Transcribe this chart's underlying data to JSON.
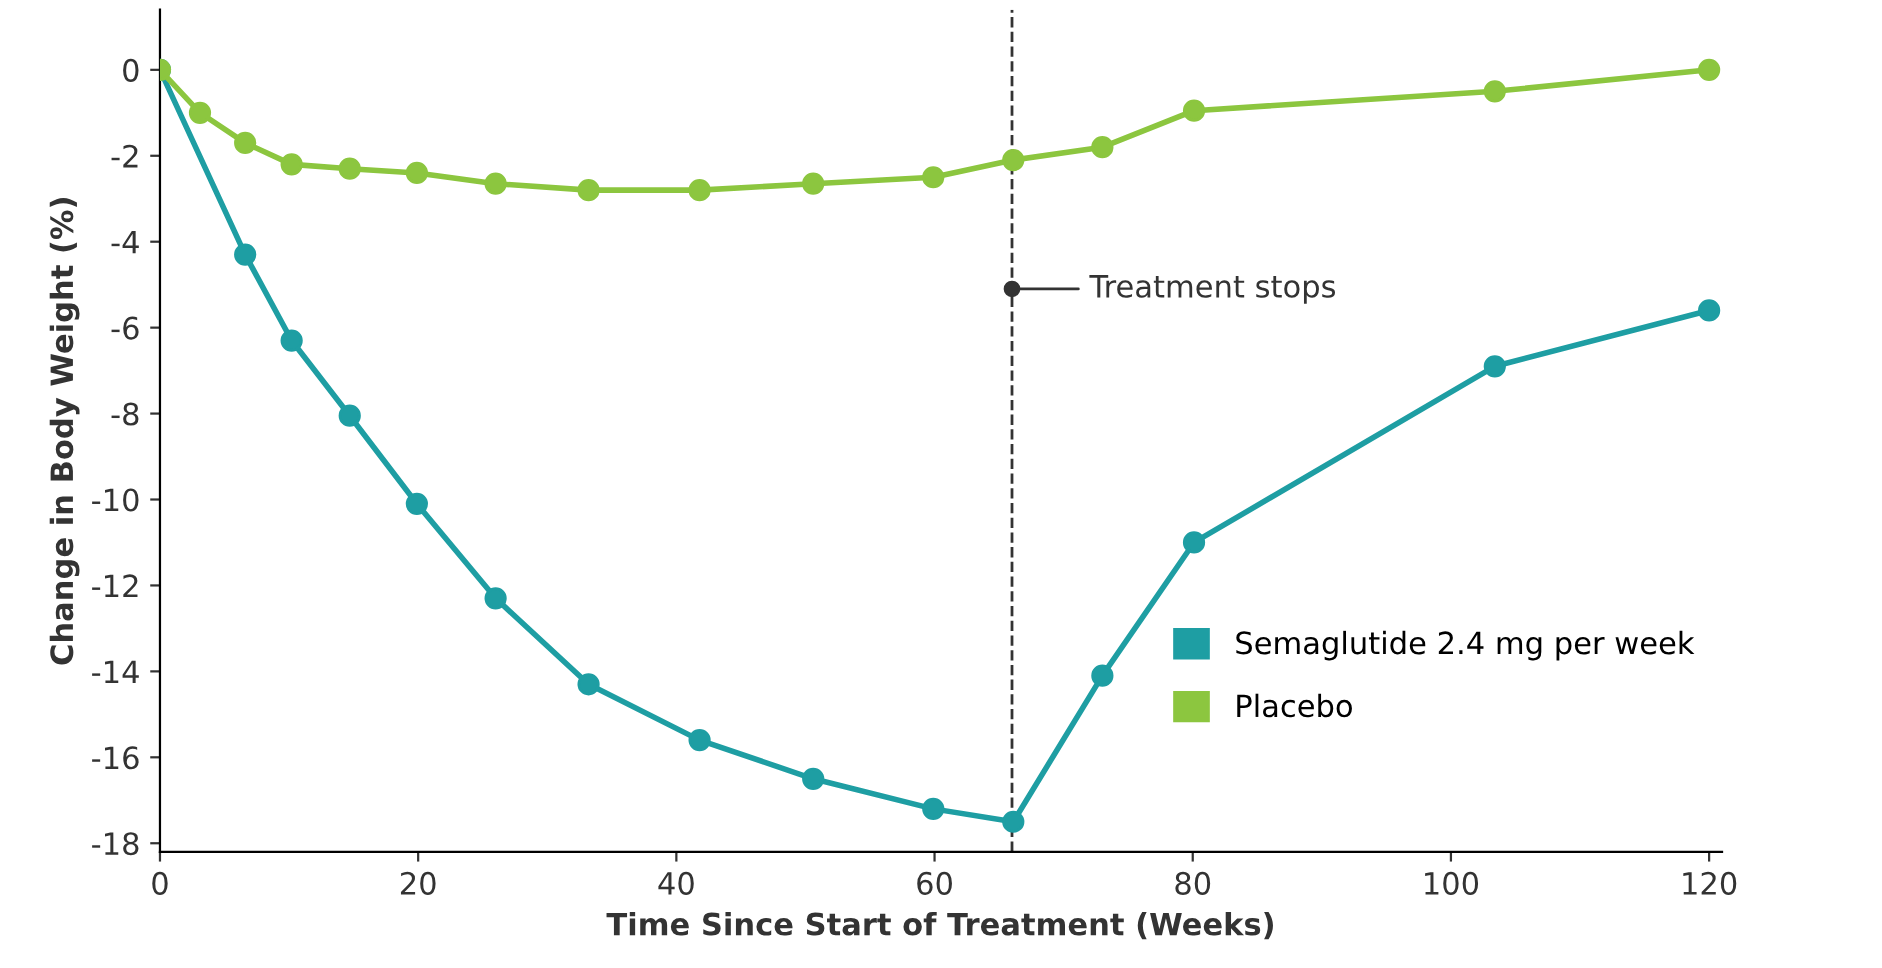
{
  "chart_data": {
    "type": "line",
    "xlabel": "Time Since Start of Treatment (Weeks)",
    "ylabel": "Change in Body Weight (%)",
    "series": [
      {
        "name": "Semaglutide 2.4 mg per week",
        "color": "#1e9ea3",
        "x": [
          0,
          6.6,
          10.2,
          14.7,
          19.9,
          26.0,
          33.2,
          41.8,
          50.6,
          59.9,
          66.1,
          73.0,
          80.1,
          103.4,
          120
        ],
        "values": [
          0,
          -4.3,
          -6.3,
          -8.05,
          -10.1,
          -12.3,
          -14.3,
          -15.6,
          -16.5,
          -17.2,
          -17.5,
          -14.1,
          -11.0,
          -6.9,
          -5.6
        ]
      },
      {
        "name": "Placebo",
        "color": "#8cc63f",
        "x": [
          0,
          3.1,
          6.6,
          10.2,
          14.7,
          19.9,
          26.0,
          33.2,
          41.8,
          50.6,
          59.9,
          66.1,
          73.0,
          80.1,
          103.4,
          120
        ],
        "values": [
          0,
          -1.0,
          -1.7,
          -2.2,
          -2.3,
          -2.4,
          -2.65,
          -2.8,
          -2.8,
          -2.65,
          -2.5,
          -2.1,
          -1.8,
          -0.95,
          -0.5,
          0
        ]
      }
    ],
    "xlim": [
      0,
      121
    ],
    "ylim": [
      -18.2,
      1.4
    ],
    "xticks": [
      0,
      20,
      40,
      60,
      80,
      100,
      120
    ],
    "yticks": [
      0,
      -2,
      -4,
      -6,
      -8,
      -10,
      -12,
      -14,
      -16,
      -18
    ],
    "ref_lines": [
      {
        "axis": "x",
        "value": 66,
        "line_style": "dashed",
        "color": "#333333"
      }
    ],
    "annotations": [
      {
        "text": "Treatment stops",
        "x": 66,
        "y": -5.1
      }
    ],
    "marker": "circle",
    "line_style": "solid",
    "grid": false,
    "legend": "bottom right"
  }
}
